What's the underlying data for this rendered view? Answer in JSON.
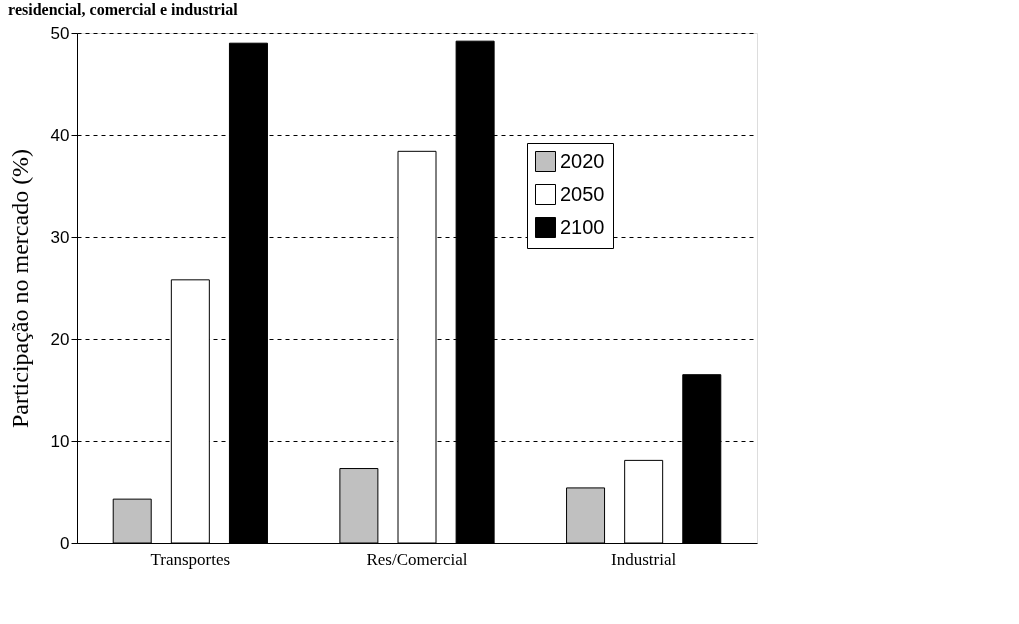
{
  "chart_data": {
    "type": "bar",
    "title": "residencial, comercial e industrial",
    "ylabel": "Participação no mercado (%)",
    "categories": [
      "Transportes",
      "Res/Comercial",
      "Industrial"
    ],
    "series": [
      {
        "name": "2020",
        "color": "#c0c0c0",
        "values": [
          4.3,
          7.3,
          5.4
        ]
      },
      {
        "name": "2050",
        "color": "#ffffff",
        "values": [
          25.8,
          38.4,
          8.1
        ]
      },
      {
        "name": "2100",
        "color": "#000000",
        "values": [
          49.0,
          49.2,
          16.5
        ]
      }
    ],
    "ylim": [
      0,
      50
    ],
    "yticks": [
      0,
      10,
      20,
      30,
      40,
      50
    ],
    "grid": "y",
    "legend": "top right"
  }
}
